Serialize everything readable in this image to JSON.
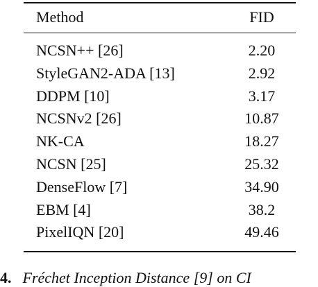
{
  "table": {
    "header": [
      "Method",
      "FID"
    ],
    "rows": [
      [
        "NCSN++ [26]",
        "2.20"
      ],
      [
        "StyleGAN2-ADA [13]",
        "2.92"
      ],
      [
        "DDPM [10]",
        "3.17"
      ],
      [
        "NCSNv2 [26]",
        "10.87"
      ],
      [
        "NK-CA",
        "18.27"
      ],
      [
        "NCSN [25]",
        "25.32"
      ],
      [
        "DenseFlow [7]",
        "34.90"
      ],
      [
        "EBM [4]",
        "38.2"
      ],
      [
        "PixelIQN [20]",
        "49.46"
      ]
    ]
  },
  "caption": {
    "label": "4.",
    "text": "Fréchet Inception Distance [9] on CI"
  }
}
